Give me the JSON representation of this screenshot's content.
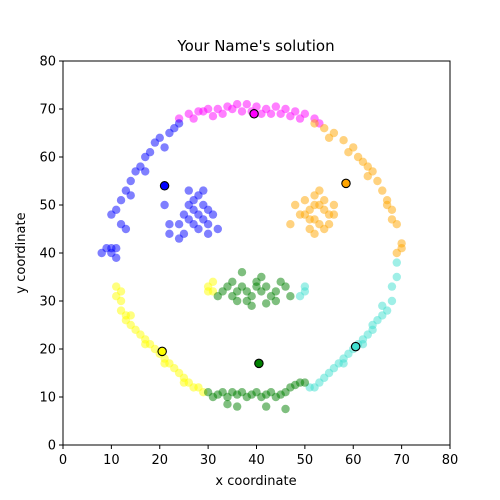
{
  "chart_data": {
    "type": "scatter",
    "title": "Your Name's solution",
    "xlabel": "x coordinate",
    "ylabel": "y coordinate",
    "xlim": [
      0,
      80
    ],
    "ylim": [
      0,
      80
    ],
    "xticks": [
      0,
      10,
      20,
      30,
      40,
      50,
      60,
      70,
      80
    ],
    "yticks": [
      0,
      10,
      20,
      30,
      40,
      50,
      60,
      70,
      80
    ],
    "grid": false,
    "legend": false,
    "clusters": [
      {
        "color": "#ff00ff",
        "description": "top arc",
        "samples": [
          [
            24,
            68
          ],
          [
            26,
            69
          ],
          [
            28,
            69.5
          ],
          [
            30,
            70
          ],
          [
            32,
            70
          ],
          [
            34,
            70.5
          ],
          [
            36,
            71
          ],
          [
            38,
            71
          ],
          [
            40,
            70.5
          ],
          [
            42,
            70
          ],
          [
            44,
            70.5
          ],
          [
            46,
            70
          ],
          [
            48,
            69.5
          ],
          [
            50,
            69
          ],
          [
            52,
            68
          ],
          [
            33,
            69
          ],
          [
            37,
            69.5
          ],
          [
            41,
            69
          ],
          [
            45,
            69
          ],
          [
            49,
            68
          ],
          [
            27,
            68
          ],
          [
            31,
            68.5
          ],
          [
            35,
            70
          ],
          [
            39,
            69.5
          ],
          [
            43,
            69
          ],
          [
            47,
            68.5
          ],
          [
            29,
            69.5
          ],
          [
            53,
            67
          ]
        ],
        "centroid": [
          39.5,
          69
        ]
      },
      {
        "color": "#ffa500",
        "description": "top-right arc and right eye",
        "samples": [
          [
            52,
            67
          ],
          [
            54,
            66
          ],
          [
            56,
            65
          ],
          [
            58,
            63.5
          ],
          [
            60,
            62
          ],
          [
            61,
            60
          ],
          [
            62,
            59
          ],
          [
            63,
            58
          ],
          [
            64,
            57
          ],
          [
            65,
            55
          ],
          [
            66,
            53
          ],
          [
            67,
            51
          ],
          [
            68,
            49
          ],
          [
            68,
            47
          ],
          [
            69,
            46
          ],
          [
            70,
            42
          ],
          [
            70,
            41
          ],
          [
            69,
            40
          ],
          [
            55,
            64
          ],
          [
            59,
            61
          ],
          [
            63,
            56
          ],
          [
            67,
            50
          ],
          [
            52,
            52
          ],
          [
            53,
            50
          ],
          [
            54,
            49
          ],
          [
            55,
            48
          ],
          [
            52,
            47
          ],
          [
            53,
            46
          ],
          [
            54,
            45
          ],
          [
            51,
            49
          ],
          [
            53,
            53
          ],
          [
            50,
            51
          ],
          [
            51,
            47
          ],
          [
            56,
            50
          ],
          [
            55,
            46
          ],
          [
            49,
            48
          ],
          [
            52,
            44
          ],
          [
            54,
            51
          ],
          [
            52,
            50
          ],
          [
            50,
            48
          ],
          [
            51,
            45
          ],
          [
            56,
            48
          ],
          [
            48,
            50
          ],
          [
            47,
            46
          ]
        ],
        "centroid": [
          58.5,
          54.5
        ]
      },
      {
        "color": "#0000ff",
        "description": "top-left arc and left eye",
        "samples": [
          [
            24,
            67
          ],
          [
            23,
            66
          ],
          [
            22,
            65
          ],
          [
            20,
            64
          ],
          [
            19,
            63
          ],
          [
            18,
            61
          ],
          [
            17,
            60
          ],
          [
            16,
            58
          ],
          [
            15,
            57
          ],
          [
            14,
            55
          ],
          [
            13,
            53
          ],
          [
            12,
            51
          ],
          [
            11,
            49
          ],
          [
            10,
            48
          ],
          [
            12,
            46
          ],
          [
            13,
            45
          ],
          [
            9,
            41
          ],
          [
            10,
            40
          ],
          [
            11,
            39
          ],
          [
            10,
            41
          ],
          [
            8,
            40
          ],
          [
            11,
            41
          ],
          [
            21,
            62
          ],
          [
            17,
            57
          ],
          [
            14,
            52
          ],
          [
            26,
            50
          ],
          [
            27,
            49
          ],
          [
            28,
            48
          ],
          [
            29,
            47
          ],
          [
            30,
            46
          ],
          [
            26,
            47
          ],
          [
            27,
            51
          ],
          [
            28,
            52
          ],
          [
            25,
            48
          ],
          [
            29,
            50
          ],
          [
            30,
            49
          ],
          [
            24,
            46
          ],
          [
            28,
            45
          ],
          [
            31,
            48
          ],
          [
            27,
            46
          ],
          [
            26,
            53
          ],
          [
            29,
            53
          ],
          [
            24,
            43
          ],
          [
            22,
            44
          ],
          [
            25,
            44
          ],
          [
            30,
            44
          ],
          [
            32,
            45
          ],
          [
            21,
            50
          ],
          [
            22,
            46
          ]
        ],
        "centroid": [
          21,
          54
        ]
      },
      {
        "color": "#40e0d0",
        "description": "lower-right arc",
        "samples": [
          [
            69,
            38
          ],
          [
            69,
            35
          ],
          [
            68,
            33
          ],
          [
            68,
            30
          ],
          [
            67,
            28
          ],
          [
            66,
            27
          ],
          [
            65,
            26
          ],
          [
            64,
            24
          ],
          [
            63,
            23
          ],
          [
            62,
            22
          ],
          [
            61,
            21
          ],
          [
            60,
            20
          ],
          [
            59,
            19
          ],
          [
            58,
            18
          ],
          [
            57,
            17
          ],
          [
            56,
            16
          ],
          [
            55,
            15
          ],
          [
            54,
            14
          ],
          [
            53,
            13
          ],
          [
            52,
            12
          ],
          [
            51,
            12
          ],
          [
            66,
            29
          ],
          [
            64,
            25
          ],
          [
            62,
            21
          ],
          [
            58,
            17
          ],
          [
            50,
            32
          ],
          [
            49,
            31
          ],
          [
            50,
            33
          ]
        ],
        "centroid": [
          60.5,
          20.5
        ]
      },
      {
        "color": "#ffff00",
        "description": "lower-left arc",
        "samples": [
          [
            11,
            33
          ],
          [
            11,
            31
          ],
          [
            12,
            30
          ],
          [
            12,
            28
          ],
          [
            13,
            27
          ],
          [
            13,
            26
          ],
          [
            14,
            25
          ],
          [
            15,
            24
          ],
          [
            16,
            23
          ],
          [
            17,
            22
          ],
          [
            18,
            21
          ],
          [
            19,
            20
          ],
          [
            20,
            19
          ],
          [
            21,
            18
          ],
          [
            22,
            17
          ],
          [
            23,
            16
          ],
          [
            24,
            15
          ],
          [
            25,
            14
          ],
          [
            26,
            13
          ],
          [
            27,
            12
          ],
          [
            28,
            12
          ],
          [
            29,
            11
          ],
          [
            12,
            32
          ],
          [
            14,
            27
          ],
          [
            17,
            21
          ],
          [
            21,
            17
          ],
          [
            25,
            13
          ],
          [
            30,
            33
          ],
          [
            31,
            32
          ],
          [
            31,
            34
          ],
          [
            30,
            32
          ]
        ],
        "centroid": [
          20.5,
          19.5
        ]
      },
      {
        "color": "#008000",
        "description": "bottom arc and mouth",
        "samples": [
          [
            30,
            11
          ],
          [
            31,
            10
          ],
          [
            32,
            10.5
          ],
          [
            33,
            11
          ],
          [
            34,
            10
          ],
          [
            35,
            11
          ],
          [
            36,
            10.5
          ],
          [
            37,
            11
          ],
          [
            38,
            10
          ],
          [
            39,
            10.5
          ],
          [
            40,
            11
          ],
          [
            41,
            10
          ],
          [
            42,
            10.5
          ],
          [
            43,
            11
          ],
          [
            44,
            10
          ],
          [
            45,
            10.5
          ],
          [
            46,
            11
          ],
          [
            47,
            12
          ],
          [
            48,
            12.5
          ],
          [
            49,
            13
          ],
          [
            50,
            13
          ],
          [
            36,
            8
          ],
          [
            42,
            8
          ],
          [
            46,
            7.5
          ],
          [
            34,
            8.5
          ],
          [
            32,
            31
          ],
          [
            33,
            32
          ],
          [
            34,
            33
          ],
          [
            35,
            31
          ],
          [
            36,
            32
          ],
          [
            37,
            33
          ],
          [
            38,
            32
          ],
          [
            39,
            31
          ],
          [
            40,
            33
          ],
          [
            41,
            32
          ],
          [
            42,
            33
          ],
          [
            43,
            31
          ],
          [
            44,
            32
          ],
          [
            45,
            34
          ],
          [
            46,
            33
          ],
          [
            47,
            31
          ],
          [
            36,
            30
          ],
          [
            38,
            30
          ],
          [
            40,
            34
          ],
          [
            42,
            29.5
          ],
          [
            37,
            36
          ],
          [
            41,
            35
          ],
          [
            39,
            29
          ],
          [
            35,
            34
          ],
          [
            44,
            30
          ]
        ],
        "centroid": [
          40.5,
          17
        ]
      }
    ]
  }
}
